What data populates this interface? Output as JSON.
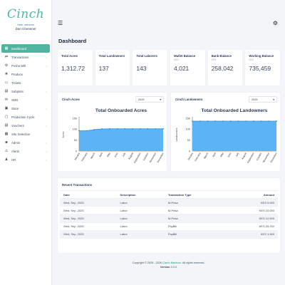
{
  "brand": {
    "logo": "Cinch",
    "welcome": "Hello, welcome",
    "username": "Dan Chesenet"
  },
  "sidebar": {
    "items": [
      {
        "label": "Dashboard",
        "icon": "dashboard-icon",
        "glyph": "▦",
        "arrow": false,
        "active": true
      },
      {
        "label": "Transactions",
        "icon": "transactions-icon",
        "glyph": "⇄",
        "arrow": true
      },
      {
        "label": "Posho Mill",
        "icon": "mill-icon",
        "glyph": "⚙",
        "arrow": true
      },
      {
        "label": "Produce",
        "icon": "produce-icon",
        "glyph": "❀",
        "arrow": false
      },
      {
        "label": "Tickets",
        "icon": "ticket-icon",
        "glyph": "▭",
        "arrow": false
      },
      {
        "label": "Subplots",
        "icon": "subplots-icon",
        "glyph": "▤",
        "arrow": true
      },
      {
        "label": "SMS",
        "icon": "sms-icon",
        "glyph": "✉",
        "arrow": false
      },
      {
        "label": "Store",
        "icon": "store-icon",
        "glyph": "▣",
        "arrow": true
      },
      {
        "label": "Production Cycle",
        "icon": "cycle-icon",
        "glyph": "▢",
        "arrow": false
      },
      {
        "label": "Vouchers",
        "icon": "voucher-icon",
        "glyph": "▤",
        "arrow": true
      },
      {
        "label": "Site Selection",
        "icon": "site-icon",
        "glyph": "▦",
        "arrow": false
      },
      {
        "label": "Admin",
        "icon": "admin-icon",
        "glyph": "☻",
        "arrow": true
      },
      {
        "label": "Alerts",
        "icon": "alert-icon",
        "glyph": "⚠",
        "arrow": true
      },
      {
        "label": "HR",
        "icon": "hr-icon",
        "glyph": "♟",
        "arrow": true
      }
    ]
  },
  "page": {
    "title": "Dashboard"
  },
  "stats": [
    {
      "label": "Total Acres",
      "currency": "",
      "value": "1,312.72"
    },
    {
      "label": "Total Landowners",
      "currency": "",
      "value": "137"
    },
    {
      "label": "Total Laborers",
      "currency": "",
      "value": "143"
    },
    {
      "label": "Wallet Balance",
      "currency": "KES",
      "value": "4,021"
    },
    {
      "label": "Bank Balance",
      "currency": "KES",
      "value": "258,042"
    },
    {
      "label": "Working Balance",
      "currency": "KES",
      "value": "735,459"
    }
  ],
  "charts": [
    {
      "card_label": "Cinch Acres",
      "year": "2025"
    },
    {
      "card_label": "Cinch Landowners",
      "year": "2025"
    }
  ],
  "chart_data": [
    {
      "type": "area",
      "title": "Total Onboarded Acres",
      "ylabel": "Acres",
      "xlabel": "",
      "ylim": [
        0,
        150
      ],
      "yticks": [
        0,
        50,
        100,
        150
      ],
      "categories": [
        "January",
        "February",
        "March",
        "April",
        "May",
        "June",
        "July",
        "August",
        "September",
        "October",
        "November",
        "December"
      ],
      "values": [
        93,
        93,
        98,
        101,
        102,
        102,
        102,
        102,
        102,
        102,
        102,
        102
      ],
      "color": "#5ab4f5",
      "grid": false,
      "legend": "none"
    },
    {
      "type": "area",
      "title": "Total Onboarded Landowners",
      "ylabel": "Landowners",
      "xlabel": "",
      "ylim": [
        0,
        150
      ],
      "yticks": [
        0,
        50,
        100,
        150
      ],
      "categories": [
        "January",
        "February",
        "March",
        "April",
        "May",
        "June",
        "July",
        "August",
        "September",
        "October",
        "November",
        "December"
      ],
      "values": [
        137,
        137,
        137,
        137,
        137,
        137,
        137,
        137,
        137,
        137,
        137,
        137
      ],
      "color": "#5ab4f5",
      "grid": false,
      "legend": "none"
    }
  ],
  "transactions": {
    "title": "Recent Transactions",
    "headers": [
      "Date",
      "Description",
      "Transaction Type",
      "Amount"
    ],
    "rows": [
      [
        "Wed, Sep, 2025",
        "Labor",
        "M-Pesa",
        "KES 9,000"
      ],
      [
        "Wed, Sep, 2025",
        "Labor",
        "M-Pesa",
        "KES 10,000"
      ],
      [
        "Wed, Sep, 2025",
        "Labor",
        "M-Pesa",
        "KES 12,500"
      ],
      [
        "Wed, Sep, 2025",
        "Labor",
        "PayBill",
        "KES 29,232"
      ],
      [
        "Wed, Sep, 2025",
        "Labor",
        "PayBill",
        "KES 1,300"
      ]
    ]
  },
  "footer": {
    "copyright_prefix": "Copyright © 2025 - 2026",
    "company": "Cinch Markets",
    "rights": ". All rights reserved.",
    "version_label": "Version",
    "version": "3.0.0"
  }
}
